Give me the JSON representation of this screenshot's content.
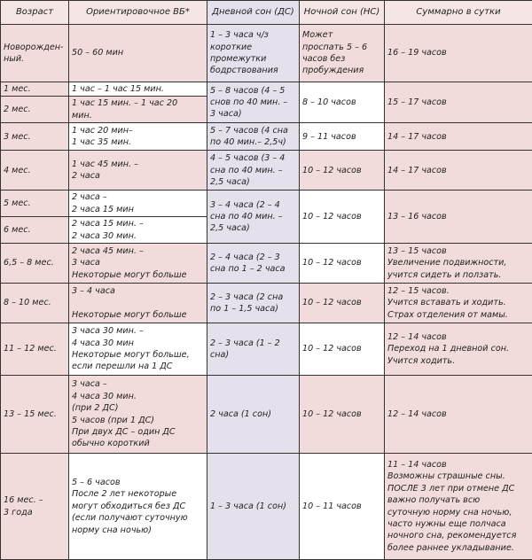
{
  "headers": [
    "Возраст",
    "Ориентировочное ВБ*",
    "Дневной сон (ДС)",
    "Ночной сон (НС)",
    "Суммарно в сутки"
  ],
  "rows": {
    "newborn": {
      "age": "Новорожден-\nный.",
      "vb": "50 – 60 мин",
      "ds": "1 – 3 часа ч/з\nкороткие\nпромежутки\nбодрствования",
      "ns": "Может\nпроспать 5 – 6\nчасов без\nпробуждения",
      "total": "16 – 19 часов"
    },
    "m1": {
      "age": "1 мес.",
      "vb": "1 час – 1 час 15 мин."
    },
    "m2": {
      "age": "2 мес.",
      "vb": "1 час 15 мин. – 1 час 20\nмин."
    },
    "m1_2": {
      "ds": "5 – 8 часов (4 – 5\nснов по 40 мин. –\n3 часа)",
      "ns": "8 – 10 часов",
      "total": "15 – 17 часов"
    },
    "m3": {
      "age": "3 мес.",
      "vb": "1 час 20 мин–\n1 час 35 мин.",
      "ds": "5 – 7 часов (4 сна\nпо 40 мин.– 2,5ч)",
      "ns": "9 – 11 часов",
      "total": "14 – 17 часов"
    },
    "m4": {
      "age": "4 мес.",
      "vb": "1 час 45 мин. –\n2 часа",
      "ds": "4 – 5 часов (3 – 4\nсна по 40 мин. –\n2,5 часа)",
      "ns": "10 – 12 часов",
      "total": "14 – 17 часов"
    },
    "m5": {
      "age": "5 мес.",
      "vb": "2 часа –\n2 часа 15 мин"
    },
    "m6": {
      "age": "6 мес.",
      "vb": "2 часа 15 мин. –\n2 часа 30 мин."
    },
    "m5_6": {
      "ds": "3 – 4 часа (2 – 4\nсна по 40 мин. –\n2,5 часа)",
      "ns": "10 – 12 часов",
      "total": "13 – 16 часов"
    },
    "m6_8": {
      "age": "6,5 – 8 мес.",
      "vb": "2 часа 45 мин. –\n3 часа\nНекоторые могут больше",
      "ds": "2 – 4 часа (2 – 3\nсна по 1 – 2 часа",
      "ns": "10 – 12 часов",
      "total": "13 – 15 часов\nУвеличение подвижности,\nучится сидеть и ползать."
    },
    "m8_10": {
      "age": "8 – 10 мес.",
      "vb": "3 –  4 часа\n\nНекоторые могут больше",
      "ds": "2 – 3 часа (2 сна\nпо 1 – 1,5 часа)",
      "ns": "10 – 12 часов",
      "total": "12 – 15 часов.\nУчится вставать и ходить.\nСтрах отделения от мамы."
    },
    "m11_12": {
      "age": "11 – 12 мес.",
      "vb": "3 часа 30 мин. –\n4 часа 30 мин\nНекоторые могут больше,\nесли перешли на 1 ДС",
      "ds": "2 – 3 часа (1 – 2\nсна)",
      "ns": "10 – 12 часов",
      "total": "12 – 14 часов\nПереход на 1 дневной сон.\nУчится ходить."
    },
    "m13_15": {
      "age": "13 – 15 мес.",
      "vb": "3 часа –\n4 часа 30 мин.\n(при 2 ДС)\n5 часов (при 1 ДС)\nПри двух ДС – один ДС\nобычно короткий",
      "ds": "2 часа (1 сон)",
      "ns": "10 – 12 часов",
      "total": "12 – 14 часов"
    },
    "m16_3y": {
      "age": "16 мес. –\n3 года",
      "vb": "5 –  6 часов\nПосле 2 лет некоторые\nмогут обходиться без ДС\n(если получают суточную\nнорму сна ночью)",
      "ds": "1 – 3 часа (1 сон)",
      "ns": "10 – 11 часов",
      "total": "11 – 14 часов\nВозможны страшные сны.\nПОСЛЕ 3 лет при отмене ДС\nважно получать всю\nсуточную норму сна ночью,\nчасто нужны еще полчаса\nночного сна, рекомендуется\nболее раннее укладывание."
    }
  },
  "colors": {
    "pink": "#f2dcdb",
    "lavender": "#e4e0ec",
    "white": "#ffffff"
  }
}
